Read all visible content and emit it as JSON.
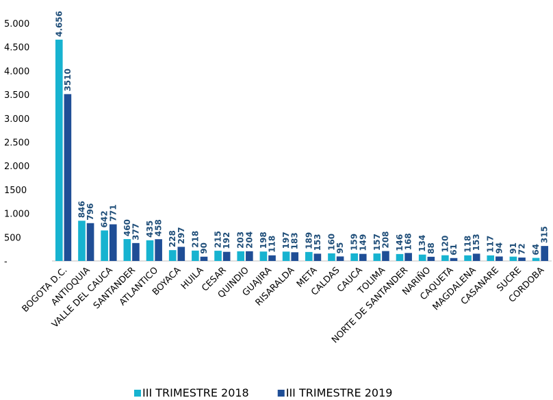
{
  "chart_data": {
    "type": "bar",
    "categories": [
      "BOGOTA D.C.",
      "ANTIOQUIA",
      "VALLE DEL CAUCA",
      "SANTANDER",
      "ATLANTICO",
      "BOYACA",
      "HUILA",
      "CESAR",
      "QUINDIO",
      "GUAJIRA",
      "RISARALDA",
      "META",
      "CALDAS",
      "CAUCA",
      "TOLIMA",
      "NORTE DE SANTANDER",
      "NARIÑO",
      "CAQUETA",
      "MAGDALENA",
      "CASANARE",
      "SUCRE",
      "CORDOBA"
    ],
    "series": [
      {
        "name": "III TRIMESTRE 2018",
        "color": "#17b3d0",
        "values": [
          4656,
          846,
          642,
          460,
          435,
          228,
          218,
          215,
          203,
          198,
          197,
          189,
          160,
          159,
          157,
          146,
          134,
          120,
          118,
          117,
          91,
          64
        ],
        "value_labels": [
          "4.656",
          "846",
          "642",
          "460",
          "435",
          "228",
          "218",
          "215",
          "203",
          "198",
          "197",
          "189",
          "160",
          "159",
          "157",
          "146",
          "134",
          "120",
          "118",
          "117",
          "91",
          "64"
        ]
      },
      {
        "name": "III TRIMESTRE 2019",
        "color": "#1f4e96",
        "values": [
          3510,
          796,
          771,
          377,
          458,
          297,
          90,
          192,
          204,
          118,
          183,
          153,
          95,
          149,
          208,
          168,
          88,
          61,
          153,
          94,
          72,
          315
        ],
        "value_labels": [
          "3510",
          "796",
          "771",
          "377",
          "458",
          "297",
          "90",
          "192",
          "204",
          "118",
          "183",
          "153",
          "95",
          "149",
          "208",
          "168",
          "88",
          "61",
          "153",
          "94",
          "72",
          "315"
        ]
      }
    ],
    "ylim": [
      0,
      5000
    ],
    "yticks": [
      {
        "value": 0,
        "label": "-"
      },
      500,
      {
        "value": 1000,
        "label": "1.000"
      },
      1500,
      {
        "value": 2000,
        "label": "2.000"
      },
      {
        "value": 2500,
        "label": "2.500"
      },
      {
        "value": 3000,
        "label": "3.000"
      },
      {
        "value": 3500,
        "label": "3.500"
      },
      {
        "value": 4000,
        "label": "4.000"
      },
      {
        "value": 4500,
        "label": "4.500"
      },
      {
        "value": 5000,
        "label": "5.000"
      }
    ],
    "legend": "bottom"
  }
}
